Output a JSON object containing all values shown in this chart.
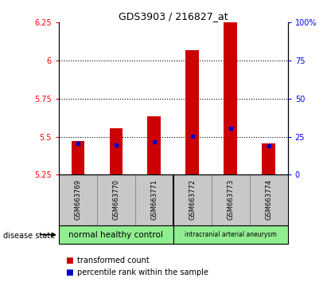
{
  "title": "GDS3903 / 216827_at",
  "samples": [
    "GSM663769",
    "GSM663770",
    "GSM663771",
    "GSM663772",
    "GSM663773",
    "GSM663774"
  ],
  "red_bar_tops": [
    5.47,
    5.555,
    5.635,
    6.07,
    6.25,
    5.455
  ],
  "blue_marker_vals": [
    5.455,
    5.447,
    5.468,
    5.503,
    5.555,
    5.443
  ],
  "ylim_left": [
    5.25,
    6.25
  ],
  "ylim_right": [
    0,
    100
  ],
  "yticks_left": [
    5.25,
    5.5,
    5.75,
    6.0,
    6.25
  ],
  "ytick_labels_left": [
    "5.25",
    "5.5",
    "5.75",
    "6",
    "6.25"
  ],
  "yticks_right": [
    0,
    25,
    50,
    75,
    100
  ],
  "ytick_labels_right": [
    "0",
    "25",
    "50",
    "75",
    "100%"
  ],
  "gridline_vals": [
    5.5,
    5.75,
    6.0
  ],
  "group1_label": "normal healthy control",
  "group2_label": "intracranial arterial aneurysm",
  "disease_state_label": "disease state",
  "legend1_label": "transformed count",
  "legend2_label": "percentile rank within the sample",
  "bar_color": "#cc0000",
  "blue_color": "#0000cc",
  "group_bg": "#90ee90",
  "label_bg": "#c8c8c8",
  "bar_width": 0.35,
  "bar_bottom": 5.25
}
